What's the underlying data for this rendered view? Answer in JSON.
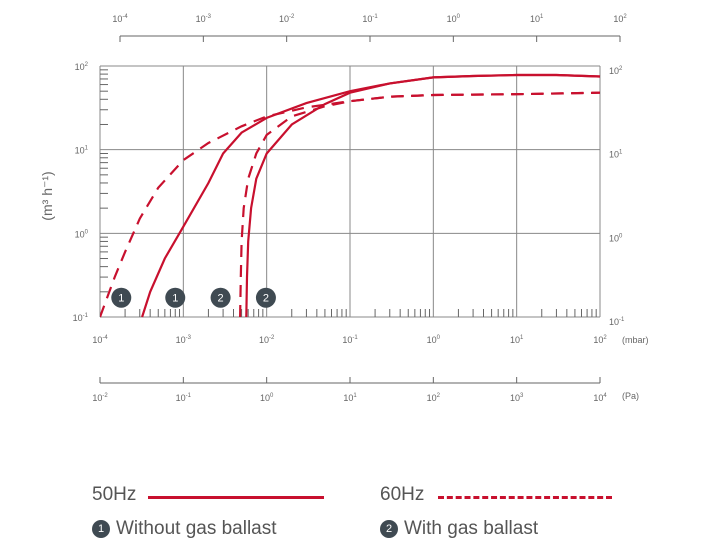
{
  "chart_data": {
    "type": "line",
    "x_scale": "log",
    "y_scale": "log",
    "xlim_mbar": [
      0.0001,
      100
    ],
    "ylim": [
      0.1,
      100
    ],
    "ylabel": "(m³ h⁻¹)",
    "x_unit_bottom": "(mbar)",
    "x_unit_pa": "(Pa)",
    "grid": true,
    "top_axis": {
      "ticks": [
        {
          "base": "10",
          "exp": "-4"
        },
        {
          "base": "10",
          "exp": "-3"
        },
        {
          "base": "10",
          "exp": "-2"
        },
        {
          "base": "10",
          "exp": "-1"
        },
        {
          "base": "10",
          "exp": "0"
        },
        {
          "base": "10",
          "exp": "1"
        },
        {
          "base": "10",
          "exp": "2"
        }
      ]
    },
    "bottom_axis_mbar": {
      "ticks": [
        {
          "base": "10",
          "exp": "-4"
        },
        {
          "base": "10",
          "exp": "-3"
        },
        {
          "base": "10",
          "exp": "-2"
        },
        {
          "base": "10",
          "exp": "-1"
        },
        {
          "base": "10",
          "exp": "0"
        },
        {
          "base": "10",
          "exp": "1"
        },
        {
          "base": "10",
          "exp": "2"
        }
      ]
    },
    "pa_axis": {
      "ticks": [
        {
          "base": "10",
          "exp": "-2"
        },
        {
          "base": "10",
          "exp": "-1"
        },
        {
          "base": "10",
          "exp": "0"
        },
        {
          "base": "10",
          "exp": "1"
        },
        {
          "base": "10",
          "exp": "2"
        },
        {
          "base": "10",
          "exp": "3"
        },
        {
          "base": "10",
          "exp": "4"
        }
      ]
    },
    "y_axis": {
      "ticks": [
        {
          "base": "10",
          "exp": "-1"
        },
        {
          "base": "10",
          "exp": "0"
        },
        {
          "base": "10",
          "exp": "1"
        },
        {
          "base": "10",
          "exp": "2"
        }
      ]
    },
    "series": [
      {
        "frequency": "50Hz",
        "ballast": "1",
        "style": "solid",
        "color": "#c8102e",
        "points": [
          [
            0.00032,
            0.1
          ],
          [
            0.0004,
            0.2
          ],
          [
            0.0006,
            0.5
          ],
          [
            0.001,
            1.2
          ],
          [
            0.002,
            4
          ],
          [
            0.003,
            9
          ],
          [
            0.005,
            16
          ],
          [
            0.01,
            24
          ],
          [
            0.03,
            36
          ],
          [
            0.1,
            50
          ],
          [
            0.3,
            62
          ],
          [
            1,
            73
          ],
          [
            3,
            76
          ],
          [
            10,
            78
          ],
          [
            30,
            78
          ],
          [
            100,
            75
          ]
        ]
      },
      {
        "frequency": "50Hz",
        "ballast": "2",
        "style": "solid",
        "color": "#c8102e",
        "points": [
          [
            0.0057,
            0.1
          ],
          [
            0.0058,
            0.3
          ],
          [
            0.006,
            0.8
          ],
          [
            0.0065,
            2
          ],
          [
            0.0075,
            4.5
          ],
          [
            0.01,
            9
          ],
          [
            0.02,
            20
          ],
          [
            0.05,
            35
          ],
          [
            0.1,
            48
          ],
          [
            0.3,
            62
          ],
          [
            1,
            73
          ],
          [
            3,
            76
          ],
          [
            10,
            78
          ],
          [
            30,
            78
          ],
          [
            100,
            75
          ]
        ]
      },
      {
        "frequency": "60Hz",
        "ballast": "1",
        "style": "dashed",
        "color": "#c8102e",
        "points": [
          [
            0.0001,
            0.1
          ],
          [
            0.00015,
            0.3
          ],
          [
            0.0002,
            0.6
          ],
          [
            0.0003,
            1.5
          ],
          [
            0.0005,
            3.5
          ],
          [
            0.001,
            7.5
          ],
          [
            0.002,
            12
          ],
          [
            0.005,
            19
          ],
          [
            0.01,
            25
          ],
          [
            0.03,
            32
          ],
          [
            0.1,
            38
          ],
          [
            0.3,
            43
          ],
          [
            1,
            45
          ],
          [
            10,
            46
          ],
          [
            100,
            48
          ]
        ]
      },
      {
        "frequency": "60Hz",
        "ballast": "2",
        "style": "dashed",
        "color": "#c8102e",
        "points": [
          [
            0.0048,
            0.1
          ],
          [
            0.0049,
            0.3
          ],
          [
            0.005,
            0.8
          ],
          [
            0.0053,
            2
          ],
          [
            0.006,
            4.5
          ],
          [
            0.0075,
            9
          ],
          [
            0.01,
            15
          ],
          [
            0.02,
            25
          ],
          [
            0.05,
            33
          ],
          [
            0.1,
            38
          ],
          [
            0.3,
            43
          ],
          [
            1,
            45
          ],
          [
            10,
            46
          ],
          [
            100,
            48
          ]
        ]
      }
    ],
    "markers": [
      {
        "label": "1",
        "x": 0.00018,
        "y": 0.17
      },
      {
        "label": "1",
        "x": 0.0008,
        "y": 0.17
      },
      {
        "label": "2",
        "x": 0.0028,
        "y": 0.17
      },
      {
        "label": "2",
        "x": 0.0098,
        "y": 0.17
      }
    ]
  },
  "legend": {
    "hz50_label": "50Hz",
    "hz60_label": "60Hz",
    "badge1": "1",
    "badge2": "2",
    "without_ballast": "Without gas ballast",
    "with_ballast": "With gas ballast"
  }
}
